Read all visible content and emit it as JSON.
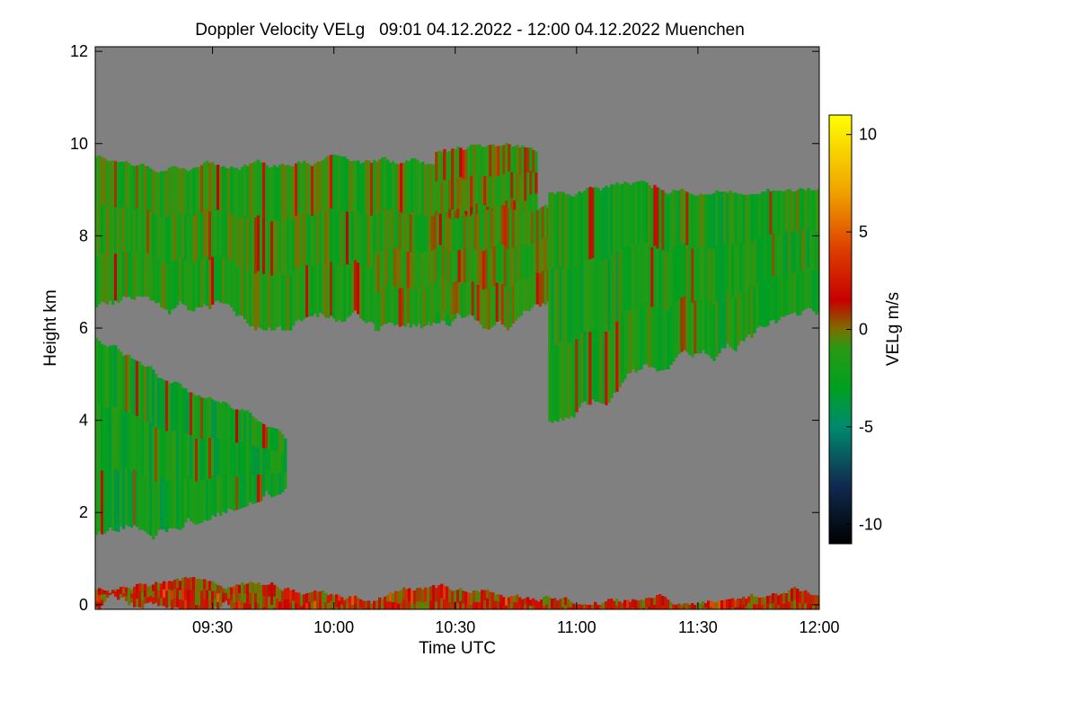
{
  "chart_data": {
    "type": "heatmap",
    "title": "Doppler Velocity VELg   09:01 04.12.2022 - 12:00 04.12.2022 Muenchen",
    "xlabel": "Time UTC",
    "ylabel": "Height km",
    "colorbar_label": "VELg m/s",
    "x_ticks": [
      "09:30",
      "10:00",
      "10:30",
      "11:00",
      "11:30",
      "12:00"
    ],
    "x_tick_minutes": [
      30,
      60,
      90,
      120,
      150,
      180
    ],
    "xlim_minutes": [
      1,
      180
    ],
    "y_ticks": [
      "0",
      "2",
      "4",
      "6",
      "8",
      "10",
      "12"
    ],
    "ylim": [
      -0.1,
      12.1
    ],
    "colorbar_ticks": [
      "10",
      "5",
      "0",
      "-5",
      "-10"
    ],
    "colorbar_tick_values": [
      10,
      5,
      0,
      -5,
      -10
    ],
    "colorbar_range": [
      -11,
      11
    ],
    "colorbar_stops": [
      {
        "v": -11,
        "c": "#000000"
      },
      {
        "v": -8,
        "c": "#102a50"
      },
      {
        "v": -5,
        "c": "#008a6e"
      },
      {
        "v": -3,
        "c": "#00a020"
      },
      {
        "v": -1,
        "c": "#289a14"
      },
      {
        "v": 0,
        "c": "#7a7000"
      },
      {
        "v": 1.5,
        "c": "#c80000"
      },
      {
        "v": 4,
        "c": "#dc3c00"
      },
      {
        "v": 7,
        "c": "#f0a000"
      },
      {
        "v": 11,
        "c": "#ffff00"
      }
    ],
    "background_color": "#808080",
    "regions": [
      {
        "desc": "upper cloud layer 09:01-10:30",
        "x": [
          1,
          90
        ],
        "top": [
          9.7,
          9.5
        ],
        "bottom": [
          6.5,
          6.5
        ],
        "mean_v": -1.5
      },
      {
        "desc": "lower cloud 09:01-09:45",
        "x": [
          1,
          48
        ],
        "top": [
          5.8,
          3.5
        ],
        "bottom": [
          1.5,
          3.0
        ],
        "mean_v": -2.5
      },
      {
        "desc": "cloud 10:30-10:50 fragments",
        "x": [
          85,
          110
        ],
        "top": [
          9.8,
          9.8
        ],
        "bottom": [
          8.0,
          8.0
        ],
        "mean_v": -0.5
      },
      {
        "desc": "mid cloud 10:20-11:00",
        "x": [
          70,
          118
        ],
        "top": [
          8.5,
          8.5
        ],
        "bottom": [
          6.0,
          6.2
        ],
        "mean_v": -1.0
      },
      {
        "desc": "large cloud 11:00-12:00",
        "x": [
          113,
          180
        ],
        "top": [
          8.9,
          9.3
        ],
        "bottom": [
          4.0,
          6.0
        ],
        "mean_v": -2.0
      },
      {
        "desc": "boundary layer clutter",
        "x": [
          1,
          180
        ],
        "top": [
          0.3,
          0.3
        ],
        "bottom": [
          0.0,
          0.0
        ],
        "mean_v": 1.0
      }
    ],
    "grid": false,
    "legend": "colorbar-right"
  }
}
